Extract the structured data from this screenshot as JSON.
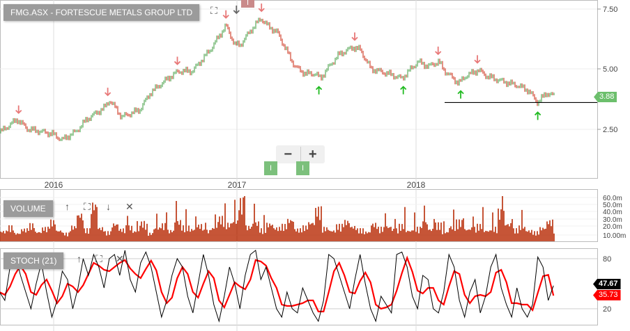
{
  "title": "FMG.ASX - FORTESCUE METALS GROUP LTD",
  "colors": {
    "up": "#3a9a3a",
    "down": "#c8200a",
    "sell_arrow": "#e87878",
    "buy_arrow": "#22bb22",
    "volume": "#b82a05",
    "stoch_k": "#000000",
    "stoch_d": "#ff0000",
    "last_price_tag": "#6cbf6c"
  },
  "toolbar": {
    "zoom_out": "−",
    "zoom_in": "+",
    "event_marker": "I"
  },
  "panels": {
    "volume_label": "VOLUME",
    "stoch_label": "STOCH (21)"
  },
  "chart_data": [
    {
      "type": "line",
      "title": "FMG.ASX - FORTESCUE METALS GROUP LTD",
      "x_ticks": [
        "2016",
        "2017",
        "2018"
      ],
      "y_ticks": [
        "7.50",
        "5.00",
        "2.50"
      ],
      "ylim": [
        1.2,
        7.9
      ],
      "last_price": "3.88",
      "support_level": 3.6,
      "price": [
        [
          "2015-09-15",
          2.35
        ],
        [
          "2015-10-20",
          2.9
        ],
        [
          "2015-11-10",
          2.5
        ],
        [
          "2015-12-29",
          2.3
        ],
        [
          "2016-01-18",
          2.05
        ],
        [
          "2016-02-15",
          2.4
        ],
        [
          "2016-03-07",
          2.9
        ],
        [
          "2016-04-12",
          3.4
        ],
        [
          "2016-04-22",
          3.7
        ],
        [
          "2016-05-16",
          3.0
        ],
        [
          "2016-06-21",
          3.3
        ],
        [
          "2016-07-12",
          4.0
        ],
        [
          "2016-08-16",
          4.6
        ],
        [
          "2016-09-06",
          4.9
        ],
        [
          "2016-10-04",
          4.9
        ],
        [
          "2016-11-09",
          5.8
        ],
        [
          "2016-12-10",
          6.8
        ],
        [
          "2016-12-28",
          6.0
        ],
        [
          "2017-01-08",
          6.0
        ],
        [
          "2017-01-29",
          6.6
        ],
        [
          "2017-02-19",
          7.1
        ],
        [
          "2017-03-04",
          6.8
        ],
        [
          "2017-03-25",
          6.5
        ],
        [
          "2017-04-11",
          5.8
        ],
        [
          "2017-04-29",
          5.1
        ],
        [
          "2017-05-20",
          4.8
        ],
        [
          "2017-06-10",
          4.8
        ],
        [
          "2017-06-20",
          4.6
        ],
        [
          "2017-07-08",
          5.1
        ],
        [
          "2017-07-28",
          5.6
        ],
        [
          "2017-08-26",
          5.9
        ],
        [
          "2017-09-09",
          5.8
        ],
        [
          "2017-10-01",
          5.0
        ],
        [
          "2017-11-05",
          4.8
        ],
        [
          "2017-12-03",
          4.6
        ],
        [
          "2017-12-17",
          4.9
        ],
        [
          "2018-01-05",
          5.3
        ],
        [
          "2018-01-26",
          5.1
        ],
        [
          "2018-02-16",
          5.3
        ],
        [
          "2018-03-01",
          4.9
        ],
        [
          "2018-03-29",
          4.4
        ],
        [
          "2018-04-12",
          4.7
        ],
        [
          "2018-05-08",
          4.95
        ],
        [
          "2018-05-25",
          4.7
        ],
        [
          "2018-06-23",
          4.5
        ],
        [
          "2018-07-28",
          4.3
        ],
        [
          "2018-08-18",
          4.1
        ],
        [
          "2018-09-06",
          3.6
        ],
        [
          "2018-09-24",
          4.0
        ],
        [
          "2018-10-08",
          3.88
        ]
      ],
      "sell_signals": [
        "2015-10-23",
        "2016-04-18",
        "2016-09-04",
        "2016-12-10",
        "2017-02-20",
        "2017-08-29",
        "2018-02-15",
        "2018-05-06"
      ],
      "buy_signals": [
        "2017-06-17",
        "2017-12-06",
        "2018-04-02",
        "2018-09-06"
      ],
      "neutral_signals": [
        "2016-12-31"
      ]
    },
    {
      "type": "bar",
      "title": "VOLUME",
      "y_ticks": [
        "60.0m",
        "50.0m",
        "40.0m",
        "30.0m",
        "20.0m",
        "10.00m"
      ],
      "ylim": [
        0,
        65
      ],
      "values": [
        15,
        22,
        12,
        18,
        25,
        14,
        20,
        30,
        16,
        12,
        22,
        40,
        18,
        55,
        20,
        14,
        26,
        18,
        22,
        15,
        28,
        12,
        20,
        25,
        16,
        30,
        22,
        18,
        24,
        16,
        20,
        35,
        26,
        30,
        60,
        22,
        28,
        18,
        26,
        20,
        24,
        32,
        18,
        22,
        28,
        48,
        20,
        16,
        24,
        30,
        22,
        18,
        14,
        26,
        20,
        22,
        18,
        24,
        16,
        20,
        28,
        18,
        26,
        14,
        22,
        30,
        18,
        20,
        24,
        16,
        20,
        45,
        26,
        18,
        22,
        16,
        14,
        20,
        30,
        18
      ],
      "date_range": [
        "2015-09-15",
        "2018-10-08"
      ]
    },
    {
      "type": "line",
      "title": "STOCH (21)",
      "y_ticks": [
        "80",
        "20"
      ],
      "ylim": [
        -2,
        95
      ],
      "last_k": "47.67",
      "last_d": "35.73",
      "k": [
        40,
        30,
        70,
        85,
        60,
        40,
        20,
        50,
        75,
        40,
        10,
        30,
        65,
        55,
        20,
        45,
        80,
        60,
        85,
        70,
        45,
        80,
        85,
        60,
        90,
        55,
        40,
        75,
        88,
        70,
        40,
        10,
        30,
        60,
        80,
        70,
        35,
        15,
        50,
        85,
        60,
        25,
        5,
        35,
        70,
        50,
        20,
        60,
        85,
        90,
        55,
        70,
        45,
        20,
        10,
        40,
        20,
        15,
        45,
        30,
        15,
        5,
        30,
        85,
        80,
        60,
        40,
        20,
        55,
        85,
        50,
        20,
        5,
        35,
        25,
        15,
        85,
        88,
        70,
        35,
        20,
        60,
        55,
        20,
        15,
        40,
        85,
        70,
        30,
        10,
        40,
        55,
        15,
        35,
        70,
        85,
        45,
        25,
        10,
        45,
        20,
        10,
        25,
        82,
        70,
        30,
        47.67
      ],
      "date_range": [
        "2015-09-15",
        "2018-10-08"
      ]
    }
  ]
}
